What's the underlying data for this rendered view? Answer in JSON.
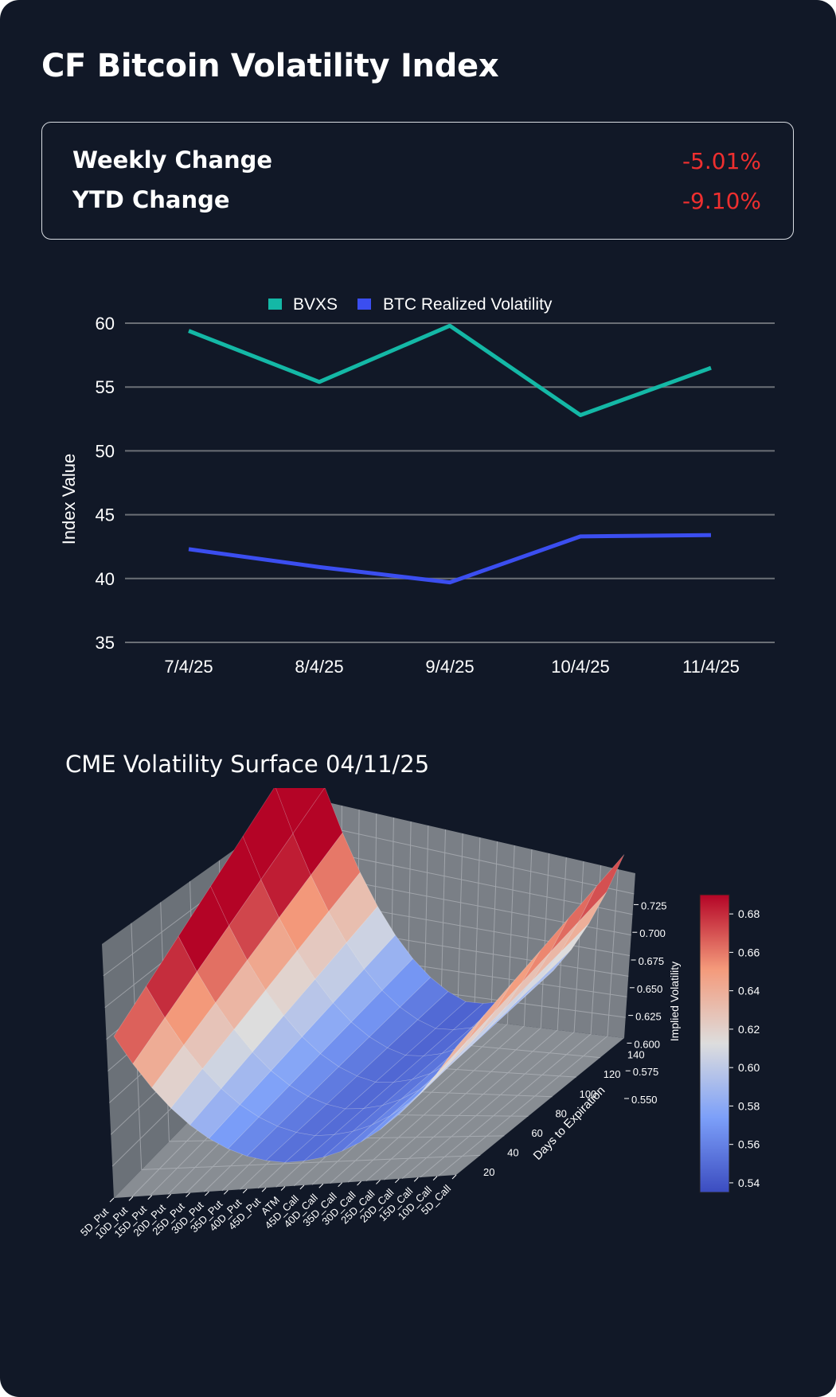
{
  "header": {
    "title": "CF Bitcoin Volatility Index"
  },
  "stats": [
    {
      "label": "Weekly Change",
      "value": "-5.01%"
    },
    {
      "label": "YTD Change",
      "value": "-9.10%"
    }
  ],
  "colors": {
    "bvxs": "#14b8a6",
    "realized": "#3b4ef0",
    "negative": "#ef2f2f",
    "grid": "#6b6f76"
  },
  "chart_data": [
    {
      "type": "line",
      "categories": [
        "7/4/25",
        "8/4/25",
        "9/4/25",
        "10/4/25",
        "11/4/25"
      ],
      "series": [
        {
          "name": "BVXS",
          "values": [
            59.4,
            55.4,
            59.8,
            52.8,
            56.5
          ]
        },
        {
          "name": "BTC Realized Volatility",
          "values": [
            42.3,
            40.9,
            39.7,
            43.3,
            43.4
          ]
        }
      ],
      "title": "",
      "xlabel": "",
      "ylabel": "Index Value",
      "ylim": [
        35,
        60
      ],
      "yticks": [
        "35",
        "40",
        "45",
        "50",
        "55",
        "60"
      ],
      "grid": true,
      "legend": "top-center"
    },
    {
      "type": "surface",
      "title": "CME Volatility Surface 04/11/25",
      "x_categories": [
        "5D_Put",
        "10D_Put",
        "15D_Put",
        "20D_Put",
        "25D_Put",
        "30D_Put",
        "35D_Put",
        "40D_Put",
        "45D_Put",
        "ATM",
        "45D_Call",
        "40D_Call",
        "35D_Call",
        "30D_Call",
        "25D_Call",
        "20D_Call",
        "15D_Call",
        "10D_Call",
        "5D_Call"
      ],
      "ylabel": "Days to Expiration",
      "yticks": [
        "20",
        "40",
        "60",
        "80",
        "100",
        "120",
        "140"
      ],
      "zlabel": "Implied Volatility",
      "zticks": [
        "0.550",
        "0.575",
        "0.600",
        "0.625",
        "0.650",
        "0.675",
        "0.700",
        "0.725"
      ],
      "colorbar_ticks": [
        "0.54",
        "0.56",
        "0.58",
        "0.60",
        "0.62",
        "0.64",
        "0.66",
        "0.68"
      ],
      "colormap": "coolwarm",
      "color_range": [
        0.535,
        0.69
      ]
    }
  ]
}
